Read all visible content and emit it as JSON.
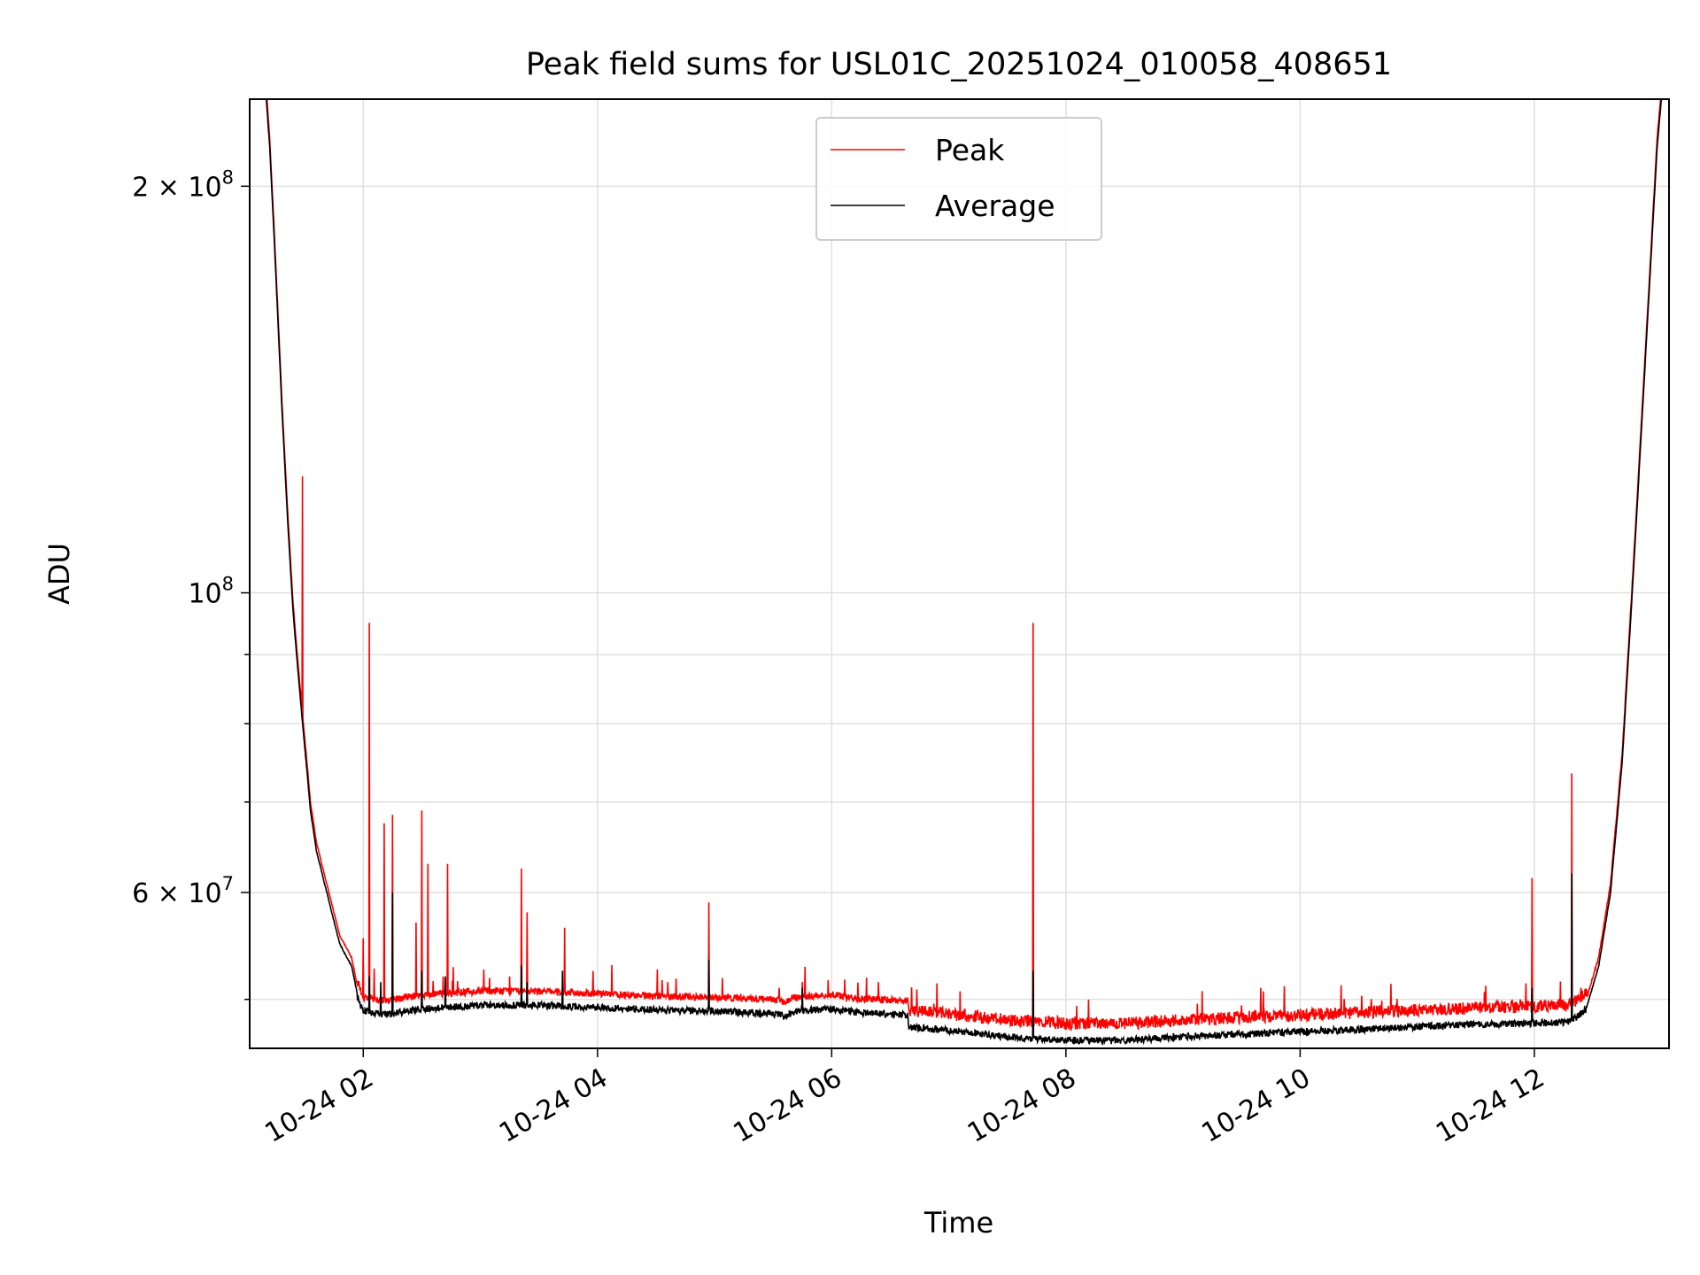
{
  "chart_data": {
    "type": "line",
    "title": "Peak field sums for USL01C_20251024_010058_408651",
    "xlabel": "Time",
    "ylabel": "ADU",
    "yscale": "log",
    "xlim": [
      1.03,
      13.15
    ],
    "ylim": [
      46000000,
      232000000
    ],
    "x_unit": "hours since 2025-10-24 00:00",
    "xticks": [
      {
        "value": 2,
        "label": "10-24 02"
      },
      {
        "value": 4,
        "label": "10-24 04"
      },
      {
        "value": 6,
        "label": "10-24 06"
      },
      {
        "value": 8,
        "label": "10-24 08"
      },
      {
        "value": 10,
        "label": "10-24 10"
      },
      {
        "value": 12,
        "label": "10-24 12"
      }
    ],
    "yticks_major": [
      {
        "value": 60000000,
        "base": "6 × 10",
        "exp": "7"
      },
      {
        "value": 100000000,
        "base": "10",
        "exp": "8"
      },
      {
        "value": 200000000,
        "base": "2 × 10",
        "exp": "8"
      }
    ],
    "yticks_minor": [
      50000000,
      70000000,
      80000000,
      90000000
    ],
    "grid": true,
    "legend": {
      "position": "top-center",
      "entries": [
        {
          "label": "Peak",
          "color": "#ff0000"
        },
        {
          "label": "Average",
          "color": "#000000"
        }
      ]
    },
    "series": [
      {
        "name": "Average",
        "color": "#000000",
        "baseline": [
          [
            1.16,
            240000000
          ],
          [
            1.2,
            215000000
          ],
          [
            1.25,
            175000000
          ],
          [
            1.3,
            140000000
          ],
          [
            1.35,
            115000000
          ],
          [
            1.4,
            97000000
          ],
          [
            1.45,
            86000000
          ],
          [
            1.5,
            77000000
          ],
          [
            1.55,
            69000000
          ],
          [
            1.6,
            64500000
          ],
          [
            1.7,
            59500000
          ],
          [
            1.8,
            55000000
          ],
          [
            1.9,
            53000000
          ],
          [
            1.95,
            50500000
          ],
          [
            2.0,
            49300000
          ],
          [
            2.2,
            49000000
          ],
          [
            2.5,
            49500000
          ],
          [
            3.0,
            49800000
          ],
          [
            3.5,
            49800000
          ],
          [
            4.0,
            49600000
          ],
          [
            4.5,
            49400000
          ],
          [
            5.0,
            49300000
          ],
          [
            5.5,
            49100000
          ],
          [
            5.6,
            48900000
          ],
          [
            5.7,
            49300000
          ],
          [
            6.0,
            49500000
          ],
          [
            6.2,
            49200000
          ],
          [
            6.65,
            49000000
          ],
          [
            6.66,
            48000000
          ],
          [
            7.0,
            47700000
          ],
          [
            7.5,
            47200000
          ],
          [
            8.0,
            46900000
          ],
          [
            8.5,
            46900000
          ],
          [
            9.0,
            47200000
          ],
          [
            9.5,
            47400000
          ],
          [
            10.0,
            47600000
          ],
          [
            10.5,
            47800000
          ],
          [
            11.0,
            48000000
          ],
          [
            11.5,
            48200000
          ],
          [
            12.0,
            48300000
          ],
          [
            12.3,
            48400000
          ],
          [
            12.45,
            49500000
          ],
          [
            12.55,
            53000000
          ],
          [
            12.65,
            60000000
          ],
          [
            12.75,
            75000000
          ],
          [
            12.85,
            105000000
          ],
          [
            12.95,
            150000000
          ],
          [
            13.05,
            215000000
          ],
          [
            13.1,
            240000000
          ]
        ],
        "spikes": [
          [
            1.48,
            76000000
          ],
          [
            2.05,
            52000000
          ],
          [
            2.15,
            51500000
          ],
          [
            2.25,
            60000000
          ],
          [
            2.5,
            52500000
          ],
          [
            2.7,
            52000000
          ],
          [
            3.35,
            53000000
          ],
          [
            3.4,
            51500000
          ],
          [
            3.7,
            52500000
          ],
          [
            4.95,
            53500000
          ],
          [
            5.75,
            51000000
          ],
          [
            7.72,
            52500000
          ],
          [
            11.98,
            51000000
          ],
          [
            12.32,
            62000000
          ]
        ]
      },
      {
        "name": "Peak",
        "color": "#ff0000",
        "offset_ratio": 1.012,
        "spikes": [
          [
            1.48,
            122000000
          ],
          [
            2.0,
            55500000
          ],
          [
            2.05,
            95000000
          ],
          [
            2.18,
            67500000
          ],
          [
            2.25,
            68500000
          ],
          [
            2.32,
            50000000
          ],
          [
            2.45,
            57000000
          ],
          [
            2.5,
            69000000
          ],
          [
            2.55,
            63000000
          ],
          [
            2.72,
            63000000
          ],
          [
            2.9,
            51000000
          ],
          [
            3.05,
            51000000
          ],
          [
            3.15,
            51000000
          ],
          [
            3.25,
            52000000
          ],
          [
            3.35,
            62500000
          ],
          [
            3.4,
            58000000
          ],
          [
            3.5,
            51000000
          ],
          [
            3.72,
            56500000
          ],
          [
            4.3,
            50500000
          ],
          [
            4.6,
            51500000
          ],
          [
            4.67,
            51800000
          ],
          [
            4.95,
            59000000
          ],
          [
            5.55,
            51000000
          ],
          [
            5.75,
            51500000
          ],
          [
            6.1,
            50500000
          ],
          [
            6.4,
            51500000
          ],
          [
            7.72,
            95000000
          ],
          [
            9.5,
            49500000
          ],
          [
            10.95,
            49500000
          ],
          [
            11.8,
            49500000
          ],
          [
            11.88,
            50000000
          ],
          [
            11.98,
            61500000
          ],
          [
            12.32,
            73500000
          ],
          [
            12.4,
            51000000
          ]
        ]
      }
    ]
  }
}
